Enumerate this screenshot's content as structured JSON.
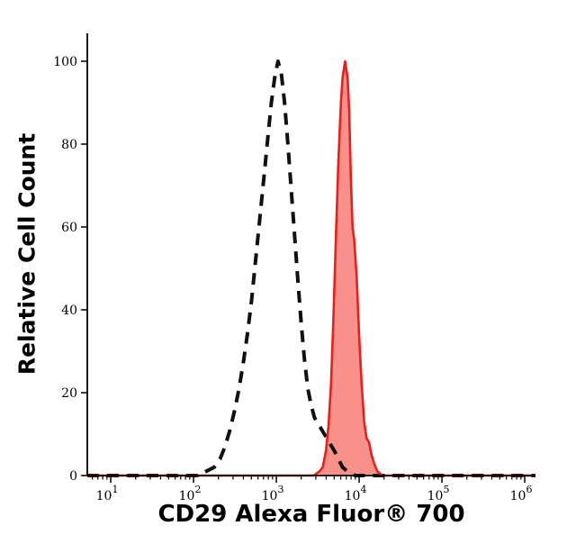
{
  "page": {
    "background": "#ffffff"
  },
  "chart_data": {
    "type": "area",
    "subtype": "flow-cytometry-histogram",
    "title": "",
    "xlabel": "CD29 Alexa Fluor® 700",
    "ylabel": "Relative Cell Count",
    "x_scale": "log10",
    "x_axis_log_range": [
      0.717,
      6.13
    ],
    "x_major_tick_exponents": [
      1,
      2,
      3,
      4,
      5,
      6
    ],
    "ylim": [
      0,
      100
    ],
    "y_ticks": [
      0,
      20,
      40,
      60,
      80,
      100
    ],
    "grid": false,
    "legend": "none",
    "axis_color": "#000000",
    "series": [
      {
        "name": "dashed-black-curve",
        "type": "line",
        "line_style": "dashed",
        "color": "#101010",
        "stroke_width": 4,
        "dash_pattern": "13 9",
        "peak_log10x": 3.02,
        "peak_value": 100,
        "points_log10x_y": [
          [
            0.717,
            0
          ],
          [
            2.05,
            0
          ],
          [
            2.15,
            1
          ],
          [
            2.25,
            2
          ],
          [
            2.32,
            4
          ],
          [
            2.38,
            7
          ],
          [
            2.44,
            11
          ],
          [
            2.5,
            16
          ],
          [
            2.55,
            21
          ],
          [
            2.6,
            27
          ],
          [
            2.65,
            34
          ],
          [
            2.7,
            42
          ],
          [
            2.74,
            50
          ],
          [
            2.78,
            58
          ],
          [
            2.82,
            66
          ],
          [
            2.86,
            74
          ],
          [
            2.9,
            82
          ],
          [
            2.94,
            90
          ],
          [
            2.98,
            96
          ],
          [
            3.02,
            100
          ],
          [
            3.06,
            97
          ],
          [
            3.1,
            90
          ],
          [
            3.14,
            80
          ],
          [
            3.18,
            69
          ],
          [
            3.22,
            58
          ],
          [
            3.26,
            47
          ],
          [
            3.3,
            37
          ],
          [
            3.34,
            28
          ],
          [
            3.38,
            21
          ],
          [
            3.42,
            17
          ],
          [
            3.46,
            14
          ],
          [
            3.52,
            12
          ],
          [
            3.58,
            10
          ],
          [
            3.64,
            8
          ],
          [
            3.7,
            6
          ],
          [
            3.75,
            4
          ],
          [
            3.8,
            2
          ],
          [
            3.86,
            1
          ],
          [
            3.95,
            0
          ],
          [
            6.13,
            0
          ]
        ]
      },
      {
        "name": "red-filled-curve",
        "type": "area",
        "line_style": "solid",
        "color": "#e8201c",
        "fill_color": "#f8918b",
        "stroke_width": 2.6,
        "peak_log10x": 3.83,
        "peak_value": 100,
        "points_log10x_y": [
          [
            0.717,
            0
          ],
          [
            3.45,
            0
          ],
          [
            3.52,
            1
          ],
          [
            3.56,
            2
          ],
          [
            3.6,
            6
          ],
          [
            3.63,
            12
          ],
          [
            3.66,
            22
          ],
          [
            3.69,
            38
          ],
          [
            3.72,
            58
          ],
          [
            3.75,
            76
          ],
          [
            3.78,
            90
          ],
          [
            3.8,
            96
          ],
          [
            3.83,
            100
          ],
          [
            3.86,
            96
          ],
          [
            3.88,
            88
          ],
          [
            3.9,
            72
          ],
          [
            3.92,
            60
          ],
          [
            3.94,
            57
          ],
          [
            3.97,
            48
          ],
          [
            4.0,
            34
          ],
          [
            4.03,
            22
          ],
          [
            4.06,
            13
          ],
          [
            4.09,
            9
          ],
          [
            4.12,
            8
          ],
          [
            4.15,
            5
          ],
          [
            4.18,
            3
          ],
          [
            4.22,
            1
          ],
          [
            4.28,
            0
          ],
          [
            6.13,
            0
          ]
        ]
      }
    ]
  }
}
